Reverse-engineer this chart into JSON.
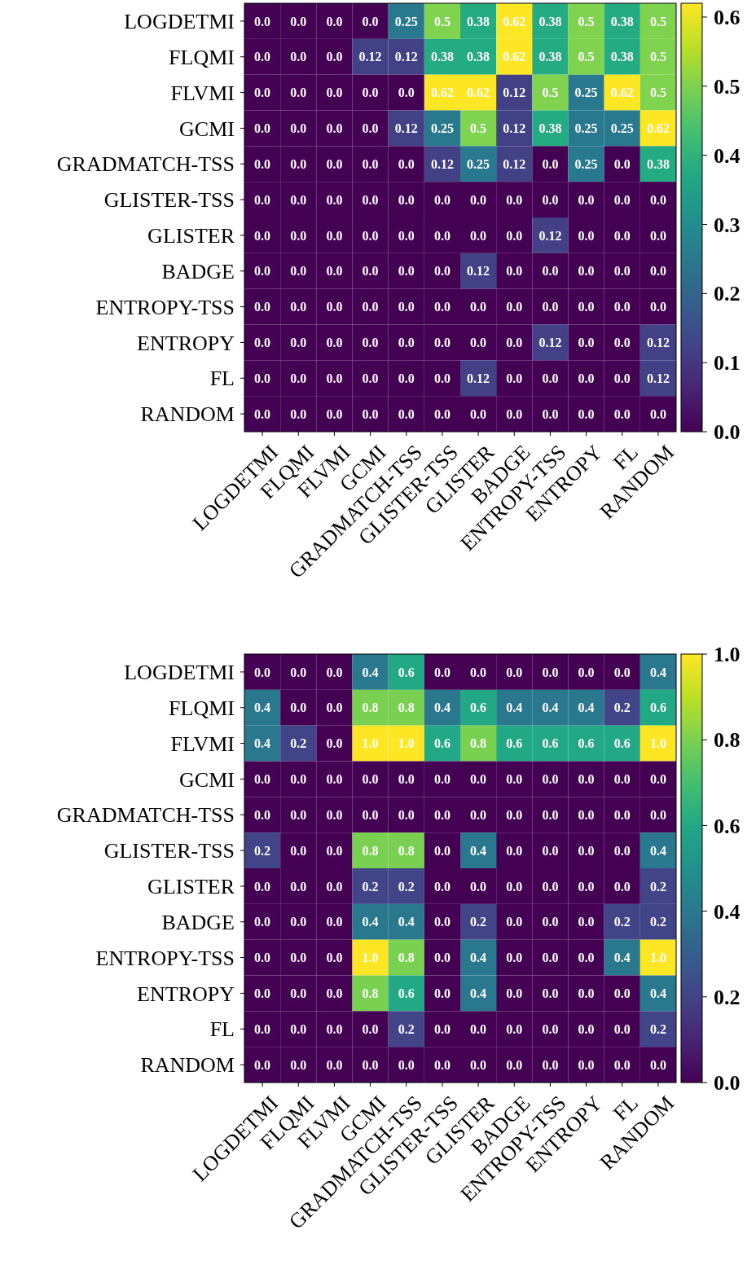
{
  "chart_data": [
    {
      "type": "heatmap",
      "categories": [
        "LOGDETMI",
        "FLQMI",
        "FLVMI",
        "GCMI",
        "GRADMATCH-TSS",
        "GLISTER-TSS",
        "GLISTER",
        "BADGE",
        "ENTROPY-TSS",
        "ENTROPY",
        "FL",
        "RANDOM"
      ],
      "y_categories": [
        "LOGDETMI",
        "FLQMI",
        "FLVMI",
        "GCMI",
        "GRADMATCH-TSS",
        "GLISTER-TSS",
        "GLISTER",
        "BADGE",
        "ENTROPY-TSS",
        "ENTROPY",
        "FL",
        "RANDOM"
      ],
      "cells": [
        [
          0,
          0,
          0,
          0,
          0.25,
          0.5,
          0.38,
          0.62,
          0.38,
          0.5,
          0.38,
          0.5
        ],
        [
          0,
          0,
          0,
          0.12,
          0.12,
          0.38,
          0.38,
          0.62,
          0.38,
          0.5,
          0.38,
          0.5
        ],
        [
          0,
          0,
          0,
          0,
          0,
          0.62,
          0.62,
          0.12,
          0.5,
          0.25,
          0.62,
          0.5
        ],
        [
          0,
          0,
          0,
          0,
          0.12,
          0.25,
          0.5,
          0.12,
          0.38,
          0.25,
          0.25,
          0.62
        ],
        [
          0,
          0,
          0,
          0,
          0,
          0.12,
          0.25,
          0.12,
          0,
          0.25,
          0,
          0.38
        ],
        [
          0,
          0,
          0,
          0,
          0,
          0,
          0,
          0,
          0,
          0,
          0,
          0
        ],
        [
          0,
          0,
          0,
          0,
          0,
          0,
          0,
          0,
          0.12,
          0,
          0,
          0
        ],
        [
          0,
          0,
          0,
          0,
          0,
          0,
          0.12,
          0,
          0,
          0,
          0,
          0
        ],
        [
          0,
          0,
          0,
          0,
          0,
          0,
          0,
          0,
          0,
          0,
          0,
          0
        ],
        [
          0,
          0,
          0,
          0,
          0,
          0,
          0,
          0,
          0.12,
          0,
          0,
          0.12
        ],
        [
          0,
          0,
          0,
          0,
          0,
          0,
          0.12,
          0,
          0,
          0,
          0,
          0.12
        ],
        [
          0,
          0,
          0,
          0,
          0,
          0,
          0,
          0,
          0,
          0,
          0,
          0
        ]
      ],
      "cell_labels": [
        [
          "0.0",
          "0.0",
          "0.0",
          "0.0",
          "0.25",
          "0.5",
          "0.38",
          "0.62",
          "0.38",
          "0.5",
          "0.38",
          "0.5"
        ],
        [
          "0.0",
          "0.0",
          "0.0",
          "0.12",
          "0.12",
          "0.38",
          "0.38",
          "0.62",
          "0.38",
          "0.5",
          "0.38",
          "0.5"
        ],
        [
          "0.0",
          "0.0",
          "0.0",
          "0.0",
          "0.0",
          "0.62",
          "0.62",
          "0.12",
          "0.5",
          "0.25",
          "0.62",
          "0.5"
        ],
        [
          "0.0",
          "0.0",
          "0.0",
          "0.0",
          "0.12",
          "0.25",
          "0.5",
          "0.12",
          "0.38",
          "0.25",
          "0.25",
          "0.62"
        ],
        [
          "0.0",
          "0.0",
          "0.0",
          "0.0",
          "0.0",
          "0.12",
          "0.25",
          "0.12",
          "0.0",
          "0.25",
          "0.0",
          "0.38"
        ],
        [
          "0.0",
          "0.0",
          "0.0",
          "0.0",
          "0.0",
          "0.0",
          "0.0",
          "0.0",
          "0.0",
          "0.0",
          "0.0",
          "0.0"
        ],
        [
          "0.0",
          "0.0",
          "0.0",
          "0.0",
          "0.0",
          "0.0",
          "0.0",
          "0.0",
          "0.12",
          "0.0",
          "0.0",
          "0.0"
        ],
        [
          "0.0",
          "0.0",
          "0.0",
          "0.0",
          "0.0",
          "0.0",
          "0.12",
          "0.0",
          "0.0",
          "0.0",
          "0.0",
          "0.0"
        ],
        [
          "0.0",
          "0.0",
          "0.0",
          "0.0",
          "0.0",
          "0.0",
          "0.0",
          "0.0",
          "0.0",
          "0.0",
          "0.0",
          "0.0"
        ],
        [
          "0.0",
          "0.0",
          "0.0",
          "0.0",
          "0.0",
          "0.0",
          "0.0",
          "0.0",
          "0.12",
          "0.0",
          "0.0",
          "0.12"
        ],
        [
          "0.0",
          "0.0",
          "0.0",
          "0.0",
          "0.0",
          "0.0",
          "0.12",
          "0.0",
          "0.0",
          "0.0",
          "0.0",
          "0.12"
        ],
        [
          "0.0",
          "0.0",
          "0.0",
          "0.0",
          "0.0",
          "0.0",
          "0.0",
          "0.0",
          "0.0",
          "0.0",
          "0.0",
          "0.0"
        ]
      ],
      "clim": [
        0,
        0.62
      ],
      "cticks": [
        {
          "value": 0,
          "label": "0.0"
        },
        {
          "value": 0.1,
          "label": "0.1"
        },
        {
          "value": 0.2,
          "label": "0.2"
        },
        {
          "value": 0.3,
          "label": "0.3"
        },
        {
          "value": 0.4,
          "label": "0.4"
        },
        {
          "value": 0.5,
          "label": "0.5"
        },
        {
          "value": 0.6,
          "label": "0.6"
        }
      ]
    },
    {
      "type": "heatmap",
      "categories": [
        "LOGDETMI",
        "FLQMI",
        "FLVMI",
        "GCMI",
        "GRADMATCH-TSS",
        "GLISTER-TSS",
        "GLISTER",
        "BADGE",
        "ENTROPY-TSS",
        "ENTROPY",
        "FL",
        "RANDOM"
      ],
      "y_categories": [
        "LOGDETMI",
        "FLQMI",
        "FLVMI",
        "GCMI",
        "GRADMATCH-TSS",
        "GLISTER-TSS",
        "GLISTER",
        "BADGE",
        "ENTROPY-TSS",
        "ENTROPY",
        "FL",
        "RANDOM"
      ],
      "cells": [
        [
          0,
          0,
          0,
          0.4,
          0.6,
          0,
          0,
          0,
          0,
          0,
          0,
          0.4
        ],
        [
          0.4,
          0,
          0,
          0.8,
          0.8,
          0.4,
          0.6,
          0.4,
          0.4,
          0.4,
          0.2,
          0.6
        ],
        [
          0.4,
          0.2,
          0,
          1.0,
          1.0,
          0.6,
          0.8,
          0.6,
          0.6,
          0.6,
          0.6,
          1.0
        ],
        [
          0,
          0,
          0,
          0,
          0,
          0,
          0,
          0,
          0,
          0,
          0,
          0
        ],
        [
          0,
          0,
          0,
          0,
          0,
          0,
          0,
          0,
          0,
          0,
          0,
          0
        ],
        [
          0.2,
          0,
          0,
          0.8,
          0.8,
          0,
          0.4,
          0,
          0,
          0,
          0,
          0.4
        ],
        [
          0,
          0,
          0,
          0.2,
          0.2,
          0,
          0,
          0,
          0,
          0,
          0,
          0.2
        ],
        [
          0,
          0,
          0,
          0.4,
          0.4,
          0,
          0.2,
          0,
          0,
          0,
          0.2,
          0.2
        ],
        [
          0,
          0,
          0,
          1.0,
          0.8,
          0,
          0.4,
          0,
          0,
          0,
          0.4,
          1.0
        ],
        [
          0,
          0,
          0,
          0.8,
          0.6,
          0,
          0.4,
          0,
          0,
          0,
          0,
          0.4
        ],
        [
          0,
          0,
          0,
          0,
          0.2,
          0,
          0,
          0,
          0,
          0,
          0,
          0.2
        ],
        [
          0,
          0,
          0,
          0,
          0,
          0,
          0,
          0,
          0,
          0,
          0,
          0
        ]
      ],
      "cell_labels": [
        [
          "0.0",
          "0.0",
          "0.0",
          "0.4",
          "0.6",
          "0.0",
          "0.0",
          "0.0",
          "0.0",
          "0.0",
          "0.0",
          "0.4"
        ],
        [
          "0.4",
          "0.0",
          "0.0",
          "0.8",
          "0.8",
          "0.4",
          "0.6",
          "0.4",
          "0.4",
          "0.4",
          "0.2",
          "0.6"
        ],
        [
          "0.4",
          "0.2",
          "0.0",
          "1.0",
          "1.0",
          "0.6",
          "0.8",
          "0.6",
          "0.6",
          "0.6",
          "0.6",
          "1.0"
        ],
        [
          "0.0",
          "0.0",
          "0.0",
          "0.0",
          "0.0",
          "0.0",
          "0.0",
          "0.0",
          "0.0",
          "0.0",
          "0.0",
          "0.0"
        ],
        [
          "0.0",
          "0.0",
          "0.0",
          "0.0",
          "0.0",
          "0.0",
          "0.0",
          "0.0",
          "0.0",
          "0.0",
          "0.0",
          "0.0"
        ],
        [
          "0.2",
          "0.0",
          "0.0",
          "0.8",
          "0.8",
          "0.0",
          "0.4",
          "0.0",
          "0.0",
          "0.0",
          "0.0",
          "0.4"
        ],
        [
          "0.0",
          "0.0",
          "0.0",
          "0.2",
          "0.2",
          "0.0",
          "0.0",
          "0.0",
          "0.0",
          "0.0",
          "0.0",
          "0.2"
        ],
        [
          "0.0",
          "0.0",
          "0.0",
          "0.4",
          "0.4",
          "0.0",
          "0.2",
          "0.0",
          "0.0",
          "0.0",
          "0.2",
          "0.2"
        ],
        [
          "0.0",
          "0.0",
          "0.0",
          "1.0",
          "0.8",
          "0.0",
          "0.4",
          "0.0",
          "0.0",
          "0.0",
          "0.4",
          "1.0"
        ],
        [
          "0.0",
          "0.0",
          "0.0",
          "0.8",
          "0.6",
          "0.0",
          "0.4",
          "0.0",
          "0.0",
          "0.0",
          "0.0",
          "0.4"
        ],
        [
          "0.0",
          "0.0",
          "0.0",
          "0.0",
          "0.2",
          "0.0",
          "0.0",
          "0.0",
          "0.0",
          "0.0",
          "0.0",
          "0.2"
        ],
        [
          "0.0",
          "0.0",
          "0.0",
          "0.0",
          "0.0",
          "0.0",
          "0.0",
          "0.0",
          "0.0",
          "0.0",
          "0.0",
          "0.0"
        ]
      ],
      "clim": [
        0,
        1
      ],
      "cticks": [
        {
          "value": 0,
          "label": "0.0"
        },
        {
          "value": 0.2,
          "label": "0.2"
        },
        {
          "value": 0.4,
          "label": "0.4"
        },
        {
          "value": 0.6,
          "label": "0.6"
        },
        {
          "value": 0.8,
          "label": "0.8"
        },
        {
          "value": 1,
          "label": "1.0"
        }
      ]
    }
  ]
}
